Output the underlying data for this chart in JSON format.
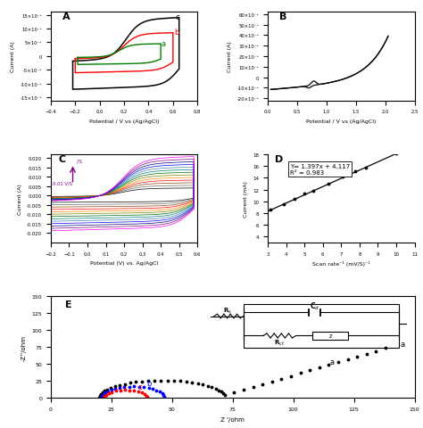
{
  "fig_width": 4.74,
  "fig_height": 4.81,
  "bg_color": "#ffffff",
  "panel_A": {
    "label": "A",
    "xlabel": "Potential / V vs (Ag/AgCl)",
    "ylabel": "Current (A)",
    "xlim": [
      -0.4,
      0.8
    ],
    "ylim": [
      -0.016,
      0.016
    ]
  },
  "panel_B": {
    "label": "B",
    "xlabel": "Potential / V vs (Ag/AgCl)",
    "ylabel": "Current (A)",
    "xlim": [
      0.0,
      2.5
    ],
    "ylim": [
      -0.022,
      0.062
    ]
  },
  "panel_C": {
    "label": "C",
    "xlabel": "Potential (V) vs. Ag/AgCl",
    "ylabel": "Current (A)",
    "xlim": [
      -0.2,
      0.6
    ],
    "ylim": [
      -0.025,
      0.022
    ]
  },
  "panel_D": {
    "label": "D",
    "xlabel": "Scan rate⁻¹ (mV/S)⁻¹",
    "ylabel": "Current (mA)",
    "xlim": [
      3,
      11
    ],
    "ylim": [
      3,
      18
    ],
    "equation": "Y= 1.397x + 4.117",
    "r2": "R² = 0.983"
  },
  "panel_E": {
    "label": "E",
    "xlabel": "Z '/ohm",
    "ylabel": "-Z''/ohm",
    "xlim": [
      0,
      150
    ],
    "ylim": [
      0,
      150
    ]
  }
}
